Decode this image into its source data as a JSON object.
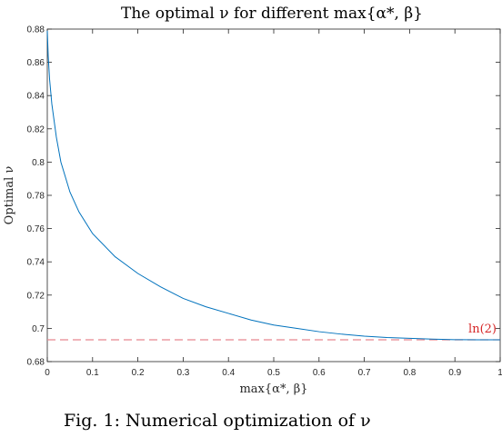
{
  "caption": "Fig. 1: Numerical optimization of ν",
  "chart_data": {
    "type": "line",
    "title": "The optimal ν for different max{α*, β}",
    "xlabel": "max{α*, β}",
    "ylabel": "Optimal ν",
    "xlim": [
      0,
      1
    ],
    "ylim": [
      0.68,
      0.88
    ],
    "xticks": [
      "0",
      "0.1",
      "0.2",
      "0.3",
      "0.4",
      "0.5",
      "0.6",
      "0.7",
      "0.8",
      "0.9",
      "1"
    ],
    "yticks": [
      "0.68",
      "0.7",
      "0.72",
      "0.74",
      "0.76",
      "0.78",
      "0.8",
      "0.82",
      "0.84",
      "0.86",
      "0.88"
    ],
    "grid": false,
    "series": [
      {
        "color": "#0072BD",
        "x": [
          0.0,
          0.002,
          0.005,
          0.01,
          0.02,
          0.03,
          0.05,
          0.07,
          0.1,
          0.15,
          0.2,
          0.25,
          0.3,
          0.35,
          0.4,
          0.45,
          0.5,
          0.55,
          0.6,
          0.65,
          0.7,
          0.75,
          0.8,
          0.85,
          0.9,
          0.95,
          1.0
        ],
        "y": [
          0.879,
          0.864,
          0.85,
          0.835,
          0.815,
          0.8,
          0.782,
          0.77,
          0.757,
          0.743,
          0.733,
          0.725,
          0.718,
          0.713,
          0.709,
          0.705,
          0.702,
          0.7,
          0.698,
          0.6965,
          0.6953,
          0.6945,
          0.694,
          0.6935,
          0.6932,
          0.6931,
          0.6931
        ]
      }
    ],
    "reference_line": {
      "y": 0.6931,
      "label": "ln(2)",
      "color": "#e8888f",
      "style": "dashed"
    }
  }
}
